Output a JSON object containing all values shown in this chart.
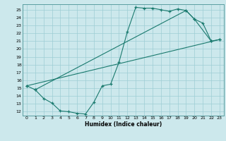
{
  "title": "",
  "xlabel": "Humidex (Indice chaleur)",
  "bg_color": "#cce8ec",
  "line_color": "#1a7a6e",
  "grid_color": "#9ecdd4",
  "xlim": [
    -0.5,
    23.5
  ],
  "ylim": [
    11.5,
    25.7
  ],
  "xticks": [
    0,
    1,
    2,
    3,
    4,
    5,
    6,
    7,
    8,
    9,
    10,
    11,
    12,
    13,
    14,
    15,
    16,
    17,
    18,
    19,
    20,
    21,
    22,
    23
  ],
  "yticks": [
    12,
    13,
    14,
    15,
    16,
    17,
    18,
    19,
    20,
    21,
    22,
    23,
    24,
    25
  ],
  "line1_x": [
    0,
    1,
    2,
    3,
    4,
    5,
    6,
    7,
    8,
    9,
    10,
    11,
    12,
    13,
    14,
    15,
    16,
    17,
    18,
    19,
    20,
    21,
    22
  ],
  "line1_y": [
    15.3,
    14.8,
    13.7,
    13.1,
    12.1,
    12.0,
    11.8,
    11.7,
    13.2,
    15.3,
    15.5,
    18.3,
    22.2,
    25.3,
    25.2,
    25.2,
    25.0,
    24.8,
    25.1,
    24.9,
    23.8,
    23.3,
    21.0
  ],
  "line2_x": [
    0,
    23
  ],
  "line2_y": [
    15.3,
    21.2
  ],
  "line3_x": [
    1,
    19,
    20,
    22,
    23
  ],
  "line3_y": [
    14.8,
    24.9,
    23.8,
    21.0,
    21.2
  ],
  "figsize": [
    3.2,
    2.0
  ],
  "dpi": 100
}
